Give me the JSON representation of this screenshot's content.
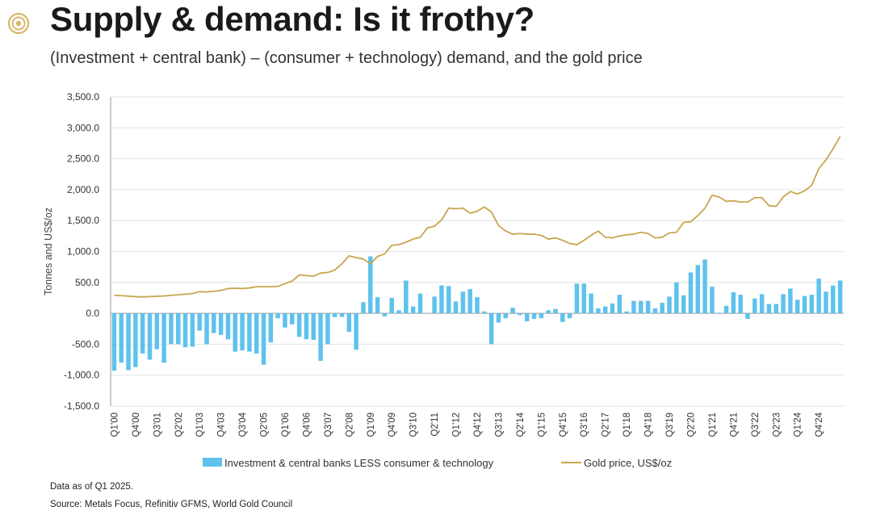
{
  "header": {
    "title": "Supply & demand: Is it frothy?",
    "subtitle": "(Investment + central bank) – (consumer + technology) demand, and the gold price"
  },
  "footer": {
    "note": "Data as of Q1 2025.",
    "source": "Source: Metals Focus, Refinitiv GFMS, World Gold Council"
  },
  "colors": {
    "bar": "#5ec2ed",
    "line": "#c9a64e",
    "axis": "#999999",
    "grid": "#e3e3e3",
    "logo": "#d7b66b"
  },
  "chart_data": {
    "type": "bar+line",
    "ylabel": "Tonnes and US$/oz",
    "xlabel": "",
    "ylim": [
      -1500,
      3500
    ],
    "yticks": [
      3500,
      3000,
      2500,
      2000,
      1500,
      1000,
      500,
      0,
      -500,
      -1000,
      -1500
    ],
    "ytick_labels": [
      "3,500.0",
      "3,000.0",
      "2,500.0",
      "2,000.0",
      "1,500.0",
      "1,000.0",
      "500.0",
      "0.0",
      "-500.0",
      "-1,000.0",
      "-1,500.0"
    ],
    "xtick_labels": [
      "Q1'00",
      "Q4'00",
      "Q3'01",
      "Q2'02",
      "Q1'03",
      "Q4'03",
      "Q3'04",
      "Q2'05",
      "Q1'06",
      "Q4'06",
      "Q3'07",
      "Q2'08",
      "Q1'09",
      "Q4'09",
      "Q3'10",
      "Q2'11",
      "Q1'12",
      "Q4'12",
      "Q3'13",
      "Q2'14",
      "Q1'15",
      "Q4'15",
      "Q3'16",
      "Q2'17",
      "Q1'18",
      "Q4'18",
      "Q3'19",
      "Q2'20",
      "Q1'21",
      "Q4'21",
      "Q3'22",
      "Q2'23",
      "Q1'24",
      "Q4'24"
    ],
    "xtick_every": 3,
    "grid": true,
    "legend_position": "bottom",
    "series": [
      {
        "name": "Investment & central banks LESS consumer & technology",
        "type": "bar",
        "values": [
          -930,
          -800,
          -920,
          -870,
          -650,
          -750,
          -580,
          -800,
          -500,
          -500,
          -550,
          -540,
          -280,
          -500,
          -320,
          -350,
          -420,
          -620,
          -600,
          -620,
          -650,
          -830,
          -470,
          -80,
          -230,
          -180,
          -380,
          -420,
          -430,
          -770,
          -500,
          -60,
          -60,
          -300,
          -590,
          180,
          920,
          260,
          -50,
          250,
          50,
          530,
          110,
          320,
          0,
          270,
          450,
          440,
          190,
          350,
          390,
          260,
          30,
          -500,
          -150,
          -80,
          90,
          -30,
          -130,
          -90,
          -80,
          50,
          70,
          -140,
          -80,
          480,
          480,
          320,
          80,
          110,
          160,
          300,
          30,
          200,
          200,
          200,
          80,
          170,
          270,
          500,
          290,
          660,
          780,
          870,
          430,
          10,
          120,
          340,
          300,
          -90,
          240,
          310,
          150,
          150,
          310,
          400,
          220,
          280,
          300,
          560,
          350,
          450,
          530
        ],
        "label_precision": 0
      },
      {
        "name": "Gold price, US$/oz",
        "type": "line",
        "values": [
          290,
          285,
          278,
          270,
          265,
          270,
          275,
          280,
          290,
          300,
          310,
          320,
          350,
          345,
          355,
          370,
          400,
          405,
          400,
          410,
          430,
          430,
          430,
          435,
          480,
          520,
          620,
          610,
          600,
          650,
          660,
          700,
          800,
          930,
          900,
          880,
          800,
          920,
          960,
          1100,
          1110,
          1150,
          1200,
          1230,
          1380,
          1410,
          1510,
          1700,
          1690,
          1700,
          1620,
          1650,
          1720,
          1640,
          1420,
          1330,
          1280,
          1290,
          1280,
          1280,
          1260,
          1200,
          1220,
          1180,
          1130,
          1110,
          1180,
          1260,
          1330,
          1230,
          1220,
          1250,
          1270,
          1280,
          1310,
          1290,
          1220,
          1230,
          1300,
          1310,
          1470,
          1480,
          1580,
          1700,
          1910,
          1880,
          1810,
          1820,
          1800,
          1800,
          1870,
          1870,
          1740,
          1730,
          1880,
          1970,
          1930,
          1980,
          2070,
          2340,
          2480,
          2660,
          2860
        ]
      }
    ]
  }
}
